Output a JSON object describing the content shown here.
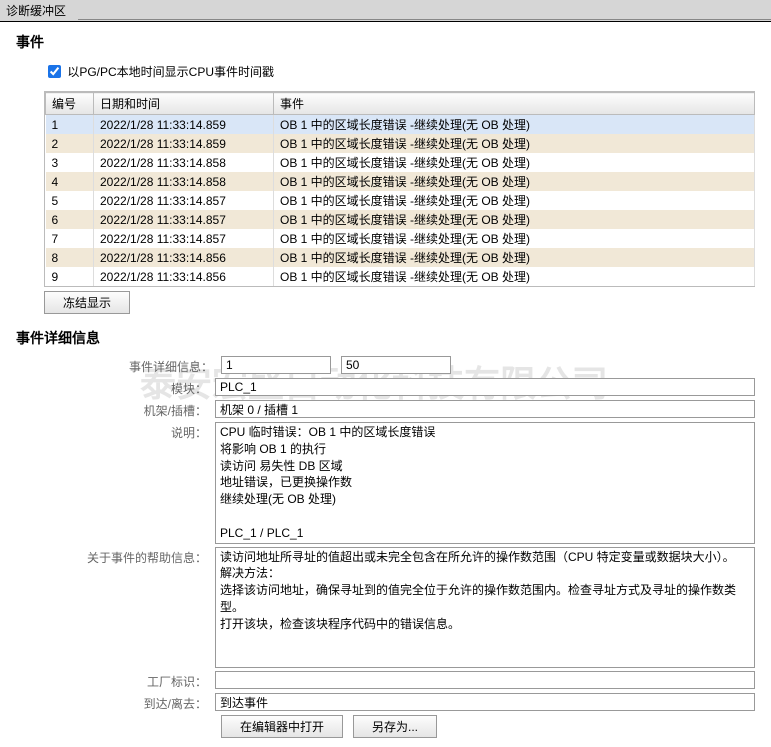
{
  "tab_title": "诊断缓冲区",
  "watermark": "泰安宏盛自动化科技有限公司",
  "events": {
    "section_title": "事件",
    "checkbox_label": "以PG/PC本地时间显示CPU事件时间戳",
    "checkbox_checked": true,
    "columns": {
      "num": "编号",
      "datetime": "日期和时间",
      "event": "事件"
    },
    "rows": [
      {
        "n": "1",
        "dt": "2022/1/28 11:33:14.859",
        "ev": "OB 1 中的区域长度错误 -继续处理(无 OB 处理)",
        "sel": true
      },
      {
        "n": "2",
        "dt": "2022/1/28 11:33:14.859",
        "ev": "OB 1 中的区域长度错误 -继续处理(无 OB 处理)"
      },
      {
        "n": "3",
        "dt": "2022/1/28 11:33:14.858",
        "ev": "OB 1 中的区域长度错误 -继续处理(无 OB 处理)"
      },
      {
        "n": "4",
        "dt": "2022/1/28 11:33:14.858",
        "ev": "OB 1 中的区域长度错误 -继续处理(无 OB 处理)"
      },
      {
        "n": "5",
        "dt": "2022/1/28 11:33:14.857",
        "ev": "OB 1 中的区域长度错误 -继续处理(无 OB 处理)"
      },
      {
        "n": "6",
        "dt": "2022/1/28 11:33:14.857",
        "ev": "OB 1 中的区域长度错误 -继续处理(无 OB 处理)"
      },
      {
        "n": "7",
        "dt": "2022/1/28 11:33:14.857",
        "ev": "OB 1 中的区域长度错误 -继续处理(无 OB 处理)"
      },
      {
        "n": "8",
        "dt": "2022/1/28 11:33:14.856",
        "ev": "OB 1 中的区域长度错误 -继续处理(无 OB 处理)"
      },
      {
        "n": "9",
        "dt": "2022/1/28 11:33:14.856",
        "ev": "OB 1 中的区域长度错误 -继续处理(无 OB 处理)"
      }
    ],
    "freeze_button": "冻结显示"
  },
  "details": {
    "section_title": "事件详细信息",
    "labels": {
      "event_detail": "事件详细信息：",
      "module": "模块：",
      "rack_slot": "机架/插槽：",
      "description": "说明：",
      "help": "关于事件的帮助信息：",
      "factory_id": "工厂标识：",
      "arrive_leave": "到达/离去："
    },
    "event_detail_1": "1",
    "event_detail_2": "50",
    "module": "PLC_1",
    "rack_slot": "机架 0 / 插槽 1",
    "description": "CPU 临时错误：OB 1 中的区域长度错误\n将影响 OB 1 的执行\n读访问 易失性 DB 区域\n地址错误，已更换操作数\n继续处理(无 OB 处理)\n\nPLC_1 / PLC_1",
    "help": "读访问地址所寻址的值超出或未完全包含在所允许的操作数范围（CPU 特定变量或数据块大小）。\n解决方法：\n选择该访问地址，确保寻址到的值完全位于允许的操作数范围内。检查寻址方式及寻址的操作数类型。\n打开该块，检查该块程序代码中的错误信息。",
    "factory_id": "",
    "arrive_leave": "到达事件",
    "buttons": {
      "open_editor": "在编辑器中打开",
      "save_as": "另存为..."
    }
  }
}
